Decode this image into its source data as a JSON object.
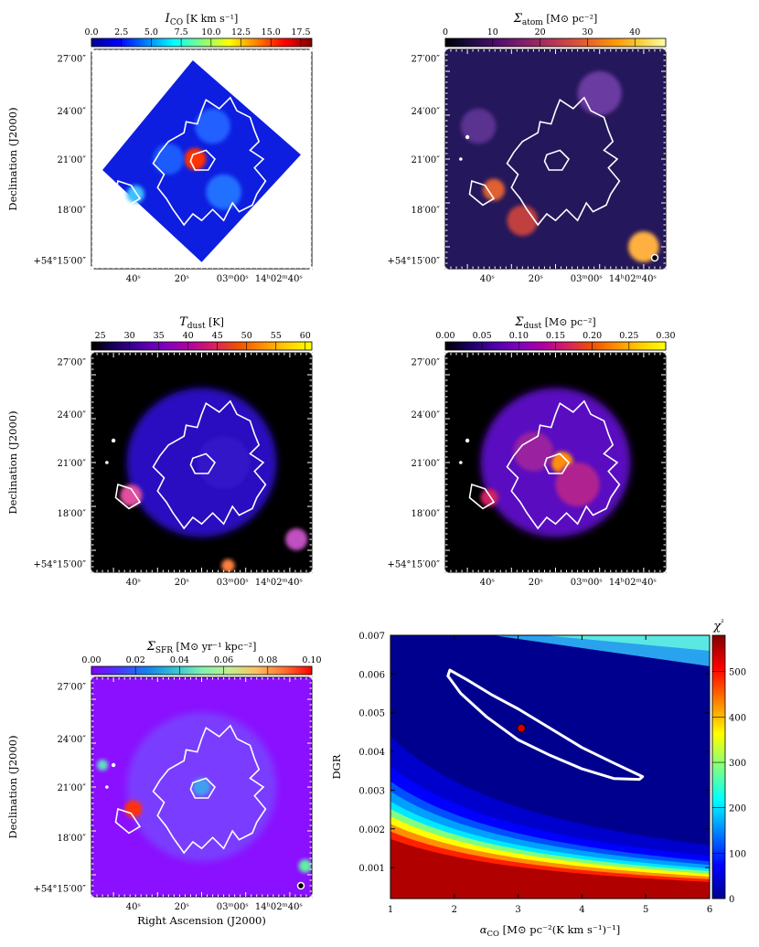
{
  "figure": {
    "map_axes": {
      "ylabel": "Declination (J2000)",
      "xlabel": "Right Ascension (J2000)",
      "dec_ticks": [
        "27′00″",
        "24′00″",
        "21′00″",
        "18′00″",
        "+54°15′00″"
      ],
      "ra_ticks": [
        "40ˢ",
        "20ˢ",
        "03ᵐ00ˢ",
        "14ʰ02ᵐ40ˢ"
      ]
    },
    "panels": [
      {
        "id": "ico",
        "title_main": "I",
        "title_sub": "CO",
        "title_rest": " [K km s⁻¹]",
        "colormap": "jet",
        "colorbar_ticks": [
          "0.0",
          "2.5",
          "5.0",
          "7.5",
          "10.0",
          "12.5",
          "15.0",
          "17.5"
        ],
        "show_dec_labels": true,
        "show_ra_title": false,
        "beam": false
      },
      {
        "id": "atom",
        "title_main": "Σ",
        "title_sub": "atom",
        "title_rest": " [M⊙ pc⁻²]",
        "colormap": "inferno",
        "colorbar_ticks": [
          "0",
          "10",
          "20",
          "30",
          "40"
        ],
        "show_dec_labels": false,
        "show_ra_title": false,
        "beam": true
      },
      {
        "id": "tdust",
        "title_main": "T",
        "title_sub": "dust",
        "title_rest": " [K]",
        "colormap": "gnuplot",
        "colorbar_ticks": [
          "25",
          "30",
          "35",
          "40",
          "45",
          "50",
          "55",
          "60"
        ],
        "show_dec_labels": true,
        "show_ra_title": false,
        "beam": false
      },
      {
        "id": "sdust",
        "title_main": "Σ",
        "title_sub": "dust",
        "title_rest": " [M⊙ pc⁻²]",
        "colormap": "gnuplot",
        "colorbar_ticks": [
          "0.00",
          "0.05",
          "0.10",
          "0.15",
          "0.20",
          "0.25",
          "0.30"
        ],
        "show_dec_labels": false,
        "show_ra_title": false,
        "beam": false
      },
      {
        "id": "sfr",
        "title_main": "Σ",
        "title_sub": "SFR",
        "title_rest": " [M⊙ yr⁻¹ kpc⁻²]",
        "colormap": "rainbow",
        "colorbar_ticks": [
          "0.00",
          "0.02",
          "0.04",
          "0.06",
          "0.08",
          "0.10"
        ],
        "show_dec_labels": true,
        "show_ra_title": true,
        "beam": true
      }
    ],
    "colors": {
      "contour": "#ffffff",
      "best_fit_marker": "#d00000"
    }
  },
  "chart_data": {
    "type": "heatmap",
    "title": "",
    "xlabel_main": "α",
    "xlabel_sub": "CO",
    "xlabel_rest": " [M⊙ pc⁻²(K km s⁻¹)⁻¹]",
    "ylabel": "DGR",
    "xlim": [
      1,
      6
    ],
    "ylim": [
      0.0002,
      0.007
    ],
    "x_ticks": [
      1,
      2,
      3,
      4,
      5,
      6
    ],
    "y_ticks": [
      0.001,
      0.002,
      0.003,
      0.004,
      0.005,
      0.006,
      0.007
    ],
    "y_tick_labels": [
      "0.001",
      "0.002",
      "0.003",
      "0.004",
      "0.005",
      "0.006",
      "0.007"
    ],
    "colorbar_label": "χ²",
    "colorbar_range": [
      0,
      580
    ],
    "colorbar_ticks": [
      0,
      100,
      200,
      300,
      400,
      500
    ],
    "colormap": "jet",
    "best_fit": {
      "x": 3.05,
      "y": 0.0046
    },
    "confidence_contour": [
      [
        1.93,
        0.0061
      ],
      [
        2.2,
        0.00585
      ],
      [
        2.6,
        0.00545
      ],
      [
        3.0,
        0.0051
      ],
      [
        3.5,
        0.0046
      ],
      [
        4.0,
        0.0041
      ],
      [
        4.5,
        0.0037
      ],
      [
        4.95,
        0.00335
      ],
      [
        4.9,
        0.00328
      ],
      [
        4.5,
        0.0033
      ],
      [
        4.0,
        0.00355
      ],
      [
        3.5,
        0.0039
      ],
      [
        3.0,
        0.0043
      ],
      [
        2.5,
        0.0049
      ],
      [
        2.1,
        0.0055
      ],
      [
        1.9,
        0.00595
      ]
    ]
  }
}
